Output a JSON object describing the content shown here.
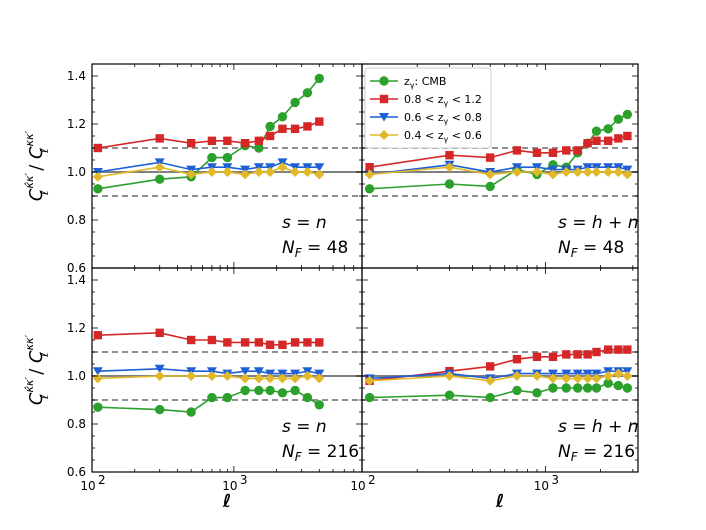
{
  "chart_data": {
    "type": "line",
    "x_scale": "log",
    "xlim_left": [
      100,
      8000
    ],
    "xlim_right": [
      100,
      3200
    ],
    "ylim": [
      0.6,
      1.45
    ],
    "yticks": [
      0.6,
      0.8,
      1.0,
      1.2,
      1.4
    ],
    "ytick_labels": [
      "0.6",
      "0.8",
      "1.0",
      "1.2",
      "1.4"
    ],
    "xtick_labels": {
      "major_100": "10",
      "major_100_exp": "2",
      "major_1000": "10",
      "major_1000_exp": "3"
    },
    "reference_lines": [
      0.9,
      1.0,
      1.1
    ],
    "xlabel": "ℓ",
    "ylabel": {
      "base": "C",
      "sub": "ℓ",
      "sup_top": "κ̂κ′",
      "sup_bottom": "κκ′",
      "sep": "/"
    },
    "legend": [
      {
        "label_pre": "z",
        "label_sub": "γ",
        "label_post": ": CMB",
        "color": "#2ca02c",
        "marker": "circle"
      },
      {
        "label_pre": "0.8 < z",
        "label_sub": "γ",
        "label_post": " < 1.2",
        "color": "#d62728",
        "marker": "square"
      },
      {
        "label_pre": "0.6 < z",
        "label_sub": "γ",
        "label_post": " < 0.8",
        "color": "#1f5fd6",
        "marker": "triangle-down"
      },
      {
        "label_pre": "0.4 < z",
        "label_sub": "γ",
        "label_post": " < 0.6",
        "color": "#e0b82a",
        "marker": "diamond"
      }
    ],
    "panels": [
      {
        "id": "top-left",
        "annotation_model": "s = n",
        "annotation_nf": "N_F = 48",
        "series": [
          {
            "name": "CMB",
            "x": [
              110,
              300,
              500,
              700,
              900,
              1200,
              1500,
              1800,
              2200,
              2700,
              3300,
              4000,
              5000,
              6200,
              7500
            ],
            "y": [
              0.93,
              0.97,
              0.98,
              1.06,
              1.06,
              1.11,
              1.1,
              1.19,
              1.23,
              1.29,
              1.33,
              1.39,
              null,
              null,
              null
            ]
          },
          {
            "name": "0.8<z<1.2",
            "x": [
              110,
              300,
              500,
              700,
              900,
              1200,
              1500,
              1800,
              2200,
              2700,
              3300,
              4000,
              5000,
              6200,
              7500
            ],
            "y": [
              1.1,
              1.14,
              1.12,
              1.13,
              1.13,
              1.12,
              1.13,
              1.15,
              1.18,
              1.18,
              1.19,
              1.21,
              null,
              null,
              null
            ]
          },
          {
            "name": "0.6<z<0.8",
            "x": [
              110,
              300,
              500,
              700,
              900,
              1200,
              1500,
              1800,
              2200,
              2700,
              3300,
              4000,
              5000,
              6200,
              7500
            ],
            "y": [
              1.0,
              1.04,
              1.01,
              1.02,
              1.02,
              1.01,
              1.02,
              1.02,
              1.04,
              1.02,
              1.02,
              1.02,
              null,
              null,
              null
            ]
          },
          {
            "name": "0.4<z<0.6",
            "x": [
              110,
              300,
              500,
              700,
              900,
              1200,
              1500,
              1800,
              2200,
              2700,
              3300,
              4000,
              5000,
              6200,
              7500
            ],
            "y": [
              0.98,
              1.02,
              0.99,
              1.0,
              1.0,
              0.99,
              1.0,
              1.0,
              1.02,
              1.0,
              1.0,
              0.99,
              null,
              null,
              null
            ]
          }
        ]
      },
      {
        "id": "top-right",
        "annotation_model": "s = h + n",
        "annotation_nf": "N_F = 48",
        "series": [
          {
            "name": "CMB",
            "x": [
              110,
              300,
              500,
              700,
              900,
              1100,
              1300,
              1500,
              1700,
              1900,
              2200,
              2500,
              2800
            ],
            "y": [
              0.93,
              0.95,
              0.94,
              1.01,
              0.99,
              1.03,
              1.02,
              1.08,
              1.12,
              1.17,
              1.18,
              1.22,
              1.24
            ]
          },
          {
            "name": "0.8<z<1.2",
            "x": [
              110,
              300,
              500,
              700,
              900,
              1100,
              1300,
              1500,
              1700,
              1900,
              2200,
              2500,
              2800
            ],
            "y": [
              1.02,
              1.07,
              1.06,
              1.09,
              1.08,
              1.08,
              1.09,
              1.09,
              1.12,
              1.13,
              1.13,
              1.14,
              1.15
            ]
          },
          {
            "name": "0.6<z<0.8",
            "x": [
              110,
              300,
              500,
              700,
              900,
              1100,
              1300,
              1500,
              1700,
              1900,
              2200,
              2500,
              2800
            ],
            "y": [
              0.99,
              1.03,
              1.0,
              1.02,
              1.02,
              1.01,
              1.01,
              1.01,
              1.02,
              1.02,
              1.02,
              1.02,
              1.01
            ]
          },
          {
            "name": "0.4<z<0.6",
            "x": [
              110,
              300,
              500,
              700,
              900,
              1100,
              1300,
              1500,
              1700,
              1900,
              2200,
              2500,
              2800
            ],
            "y": [
              0.99,
              1.02,
              0.99,
              1.0,
              1.0,
              0.99,
              1.0,
              1.0,
              1.0,
              1.0,
              1.0,
              1.0,
              0.99
            ]
          }
        ]
      },
      {
        "id": "bottom-left",
        "annotation_model": "s = n",
        "annotation_nf": "N_F = 216",
        "series": [
          {
            "name": "CMB",
            "x": [
              110,
              300,
              500,
              700,
              900,
              1200,
              1500,
              1800,
              2200,
              2700,
              3300,
              4000,
              5000,
              6200,
              7500
            ],
            "y": [
              0.87,
              0.86,
              0.85,
              0.91,
              0.91,
              0.94,
              0.94,
              0.94,
              0.93,
              0.94,
              0.91,
              0.88,
              null,
              null,
              null
            ]
          },
          {
            "name": "0.8<z<1.2",
            "x": [
              110,
              300,
              500,
              700,
              900,
              1200,
              1500,
              1800,
              2200,
              2700,
              3300,
              4000,
              5000,
              6200,
              7500
            ],
            "y": [
              1.17,
              1.18,
              1.15,
              1.15,
              1.14,
              1.14,
              1.14,
              1.13,
              1.13,
              1.14,
              1.14,
              1.14,
              null,
              null,
              null
            ]
          },
          {
            "name": "0.6<z<0.8",
            "x": [
              110,
              300,
              500,
              700,
              900,
              1200,
              1500,
              1800,
              2200,
              2700,
              3300,
              4000,
              5000,
              6200,
              7500
            ],
            "y": [
              1.02,
              1.03,
              1.02,
              1.02,
              1.01,
              1.02,
              1.02,
              1.01,
              1.01,
              1.01,
              1.02,
              1.01,
              null,
              null,
              null
            ]
          },
          {
            "name": "0.4<z<0.6",
            "x": [
              110,
              300,
              500,
              700,
              900,
              1200,
              1500,
              1800,
              2200,
              2700,
              3300,
              4000,
              5000,
              6200,
              7500
            ],
            "y": [
              0.99,
              1.0,
              1.0,
              1.0,
              1.0,
              0.99,
              0.99,
              0.99,
              0.99,
              0.99,
              1.0,
              0.99,
              null,
              null,
              null
            ]
          }
        ]
      },
      {
        "id": "bottom-right",
        "annotation_model": "s = h + n",
        "annotation_nf": "N_F = 216",
        "series": [
          {
            "name": "CMB",
            "x": [
              110,
              300,
              500,
              700,
              900,
              1100,
              1300,
              1500,
              1700,
              1900,
              2200,
              2500,
              2800
            ],
            "y": [
              0.91,
              0.92,
              0.91,
              0.94,
              0.93,
              0.95,
              0.95,
              0.95,
              0.95,
              0.95,
              0.97,
              0.96,
              0.95
            ]
          },
          {
            "name": "0.8<z<1.2",
            "x": [
              110,
              300,
              500,
              700,
              900,
              1100,
              1300,
              1500,
              1700,
              1900,
              2200,
              2500,
              2800
            ],
            "y": [
              0.98,
              1.02,
              1.04,
              1.07,
              1.08,
              1.08,
              1.09,
              1.09,
              1.09,
              1.1,
              1.11,
              1.11,
              1.11
            ]
          },
          {
            "name": "0.6<z<0.8",
            "x": [
              110,
              300,
              500,
              700,
              900,
              1100,
              1300,
              1500,
              1700,
              1900,
              2200,
              2500,
              2800
            ],
            "y": [
              0.99,
              1.01,
              0.99,
              1.01,
              1.01,
              1.01,
              1.01,
              1.01,
              1.01,
              1.01,
              1.02,
              1.02,
              1.02
            ]
          },
          {
            "name": "0.4<z<0.6",
            "x": [
              110,
              300,
              500,
              700,
              900,
              1100,
              1300,
              1500,
              1700,
              1900,
              2200,
              2500,
              2800
            ],
            "y": [
              0.98,
              1.0,
              0.98,
              1.0,
              1.0,
              0.99,
              0.99,
              0.99,
              0.99,
              0.99,
              1.0,
              1.01,
              1.0
            ]
          }
        ]
      }
    ]
  }
}
